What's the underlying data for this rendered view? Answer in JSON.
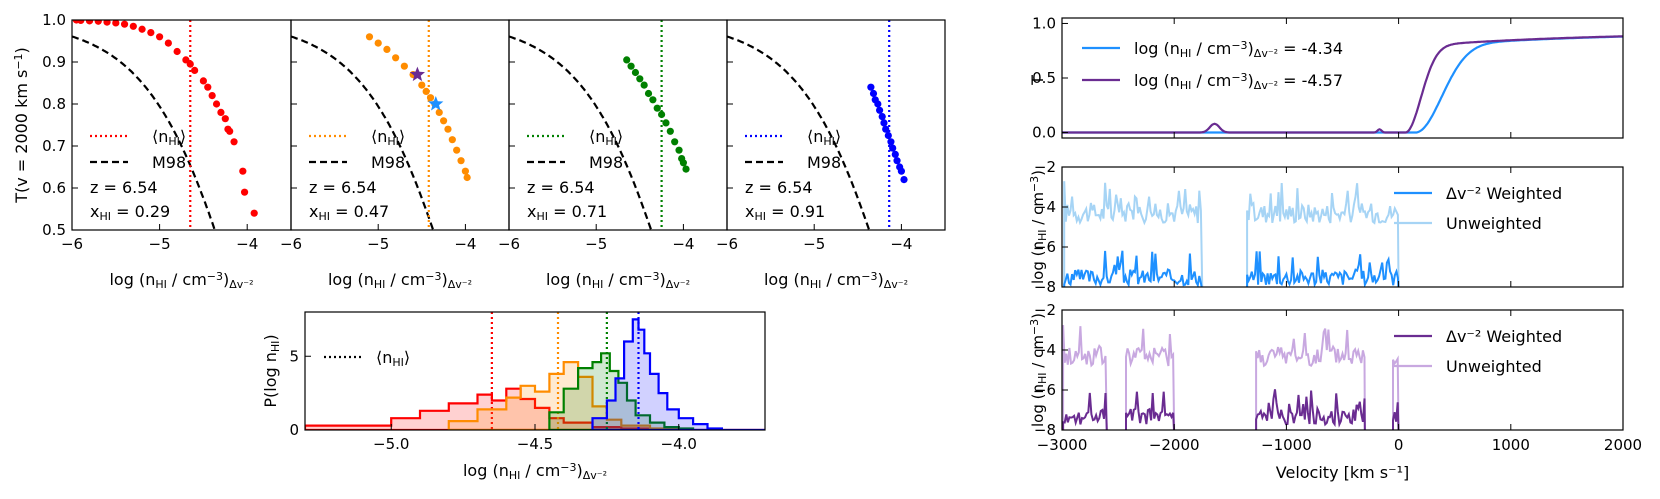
{
  "colors": {
    "red": "#ff0000",
    "orange": "#ff8c00",
    "green": "#008000",
    "blue": "#0000ff",
    "lightblue": "#1e90ff",
    "paleblue": "#a6d4f5",
    "purple": "#6a2c91",
    "lightpurple": "#c8a8e0",
    "black": "#000000"
  },
  "chart_data": [
    {
      "type": "scatter",
      "title": "",
      "ylabel": "T(v = 2000 km s⁻¹)",
      "xlabel": "log (nHI / cm⁻³)Δv⁻²",
      "xlim": [
        -6,
        -3.5
      ],
      "ylim": [
        0.5,
        1.0
      ],
      "xticks": [
        "−6",
        "−5",
        "−4"
      ],
      "yticks": [
        "0.5",
        "0.6",
        "0.7",
        "0.8",
        "0.9",
        "1.0"
      ],
      "color": "red",
      "vline": -4.65,
      "z_label": "z = 6.54",
      "x_label": "xHI = 0.29",
      "legend": [
        "⟨nHI⟩",
        "M98"
      ],
      "points": [
        [
          -5.95,
          1.0
        ],
        [
          -5.9,
          0.999
        ],
        [
          -5.8,
          0.998
        ],
        [
          -5.7,
          0.997
        ],
        [
          -5.6,
          0.995
        ],
        [
          -5.5,
          0.993
        ],
        [
          -5.4,
          0.99
        ],
        [
          -5.3,
          0.985
        ],
        [
          -5.2,
          0.978
        ],
        [
          -5.1,
          0.97
        ],
        [
          -5.0,
          0.96
        ],
        [
          -4.9,
          0.945
        ],
        [
          -4.8,
          0.925
        ],
        [
          -4.7,
          0.905
        ],
        [
          -4.65,
          0.895
        ],
        [
          -4.6,
          0.88
        ],
        [
          -4.5,
          0.855
        ],
        [
          -4.45,
          0.84
        ],
        [
          -4.4,
          0.82
        ],
        [
          -4.35,
          0.8
        ],
        [
          -4.3,
          0.78
        ],
        [
          -4.25,
          0.765
        ],
        [
          -4.22,
          0.74
        ],
        [
          -4.2,
          0.735
        ],
        [
          -4.15,
          0.71
        ],
        [
          -4.05,
          0.64
        ],
        [
          -4.03,
          0.59
        ],
        [
          -3.92,
          0.54
        ]
      ]
    },
    {
      "type": "scatter",
      "title": "",
      "xlabel": "log (nHI / cm⁻³)Δv⁻²",
      "xlim": [
        -6,
        -3.5
      ],
      "ylim": [
        0.5,
        1.0
      ],
      "xticks": [
        "−6",
        "−5",
        "−4"
      ],
      "color": "orange",
      "vline": -4.42,
      "z_label": "z = 6.54",
      "x_label": "xHI = 0.47",
      "legend": [
        "⟨nHI⟩",
        "M98"
      ],
      "stars": [
        {
          "x": -4.55,
          "y": 0.87,
          "color": "purple"
        },
        {
          "x": -4.34,
          "y": 0.8,
          "color": "lightblue"
        }
      ],
      "points": [
        [
          -5.1,
          0.96
        ],
        [
          -5.0,
          0.945
        ],
        [
          -4.9,
          0.93
        ],
        [
          -4.8,
          0.91
        ],
        [
          -4.7,
          0.89
        ],
        [
          -4.6,
          0.87
        ],
        [
          -4.5,
          0.845
        ],
        [
          -4.45,
          0.83
        ],
        [
          -4.4,
          0.815
        ],
        [
          -4.35,
          0.8
        ],
        [
          -4.3,
          0.78
        ],
        [
          -4.25,
          0.76
        ],
        [
          -4.2,
          0.74
        ],
        [
          -4.15,
          0.715
        ],
        [
          -4.1,
          0.69
        ],
        [
          -4.05,
          0.665
        ],
        [
          -4.0,
          0.64
        ],
        [
          -3.98,
          0.625
        ]
      ]
    },
    {
      "type": "scatter",
      "title": "",
      "xlabel": "log (nHI / cm⁻³)Δv⁻²",
      "xlim": [
        -6,
        -3.5
      ],
      "ylim": [
        0.5,
        1.0
      ],
      "xticks": [
        "−6",
        "−5",
        "−4"
      ],
      "color": "green",
      "vline": -4.25,
      "z_label": "z = 6.54",
      "x_label": "xHI = 0.71",
      "legend": [
        "⟨nHI⟩",
        "M98"
      ],
      "points": [
        [
          -4.65,
          0.905
        ],
        [
          -4.6,
          0.89
        ],
        [
          -4.55,
          0.875
        ],
        [
          -4.5,
          0.86
        ],
        [
          -4.45,
          0.845
        ],
        [
          -4.4,
          0.825
        ],
        [
          -4.35,
          0.81
        ],
        [
          -4.3,
          0.79
        ],
        [
          -4.25,
          0.775
        ],
        [
          -4.2,
          0.755
        ],
        [
          -4.15,
          0.735
        ],
        [
          -4.1,
          0.71
        ],
        [
          -4.05,
          0.69
        ],
        [
          -4.02,
          0.67
        ],
        [
          -4.0,
          0.66
        ],
        [
          -3.97,
          0.645
        ]
      ]
    },
    {
      "type": "scatter",
      "title": "",
      "xlabel": "log (nHI / cm⁻³)Δv⁻²",
      "xlim": [
        -6,
        -3.5
      ],
      "ylim": [
        0.5,
        1.0
      ],
      "xticks": [
        "−6",
        "−5",
        "−4"
      ],
      "color": "blue",
      "vline": -4.14,
      "z_label": "z = 6.54",
      "x_label": "xHI = 0.91",
      "legend": [
        "⟨nHI⟩",
        "M98"
      ],
      "points": [
        [
          -4.35,
          0.84
        ],
        [
          -4.32,
          0.825
        ],
        [
          -4.3,
          0.81
        ],
        [
          -4.27,
          0.8
        ],
        [
          -4.25,
          0.785
        ],
        [
          -4.22,
          0.77
        ],
        [
          -4.2,
          0.755
        ],
        [
          -4.18,
          0.74
        ],
        [
          -4.15,
          0.725
        ],
        [
          -4.12,
          0.71
        ],
        [
          -4.1,
          0.695
        ],
        [
          -4.07,
          0.68
        ],
        [
          -4.05,
          0.665
        ],
        [
          -4.02,
          0.65
        ],
        [
          -4.0,
          0.64
        ],
        [
          -3.97,
          0.62
        ]
      ]
    },
    {
      "type": "histogram",
      "title": "",
      "ylabel": "P(log nHI)",
      "xlabel": "log (nHI / cm⁻³)Δv⁻²",
      "xlim": [
        -5.3,
        -3.7
      ],
      "ylim": [
        0,
        8
      ],
      "xticks": [
        "−5.0",
        "−4.5",
        "−4.0"
      ],
      "yticks": [
        "0",
        "5"
      ],
      "legend": [
        "⟨nHI⟩"
      ],
      "series": [
        {
          "color": "red",
          "mean": -4.65,
          "edges": [
            -5.3,
            -5.0,
            -4.9,
            -4.8,
            -4.7,
            -4.65,
            -4.6,
            -4.55,
            -4.5,
            -4.45,
            -4.4,
            -4.3,
            -4.2,
            -4.1,
            -3.7
          ],
          "values": [
            0.3,
            0.8,
            1.3,
            1.8,
            2.4,
            2.0,
            2.8,
            2.1,
            1.5,
            0.8,
            0.5,
            0.2,
            0.1,
            0
          ]
        },
        {
          "color": "orange",
          "mean": -4.42,
          "edges": [
            -4.8,
            -4.7,
            -4.6,
            -4.55,
            -4.5,
            -4.45,
            -4.4,
            -4.35,
            -4.3,
            -4.25,
            -4.2,
            -4.1,
            -4.0
          ],
          "values": [
            0.6,
            1.4,
            2.2,
            3.0,
            2.6,
            3.8,
            4.6,
            3.6,
            1.6,
            0.7,
            0.3,
            0.1
          ]
        },
        {
          "color": "green",
          "mean": -4.25,
          "edges": [
            -4.45,
            -4.4,
            -4.35,
            -4.3,
            -4.27,
            -4.24,
            -4.21,
            -4.18,
            -4.15,
            -4.1,
            -4.05,
            -4.0,
            -3.95
          ],
          "values": [
            1.2,
            2.8,
            4.2,
            4.6,
            5.2,
            4.0,
            3.2,
            2.0,
            1.0,
            0.5,
            0.2,
            0.1
          ]
        },
        {
          "color": "blue",
          "mean": -4.14,
          "edges": [
            -4.3,
            -4.25,
            -4.22,
            -4.19,
            -4.16,
            -4.14,
            -4.12,
            -4.1,
            -4.07,
            -4.04,
            -4.0,
            -3.95,
            -3.9,
            -3.85,
            -3.7
          ],
          "values": [
            0.8,
            2.0,
            3.5,
            6.0,
            7.5,
            6.8,
            5.2,
            3.8,
            2.5,
            1.4,
            0.8,
            0.4,
            0.1,
            0
          ]
        }
      ]
    },
    {
      "type": "line",
      "title": "",
      "ylabel": "T",
      "xlim": [
        -3000,
        2000
      ],
      "ylim": [
        -0.05,
        1.05
      ],
      "yticks": [
        "0.0",
        "0.5",
        "1.0"
      ],
      "series": [
        {
          "name": "log (nHI / cm⁻³)Δv⁻² = -4.34",
          "color": "lightblue",
          "shift": 150,
          "scale": 250
        },
        {
          "name": "log (nHI / cm⁻³)Δv⁻² = -4.57",
          "color": "purple",
          "shift": 60,
          "scale": 150
        }
      ]
    },
    {
      "type": "line",
      "title": "",
      "ylabel": "log (nHI / cm⁻³)",
      "xlim": [
        -3000,
        2000
      ],
      "ylim": [
        -8,
        -2
      ],
      "yticks": [
        "−8",
        "−6",
        "−4",
        "−2"
      ],
      "segments": [
        [
          -2980,
          -1750
        ],
        [
          -1350,
          0
        ]
      ],
      "series": [
        {
          "name": "Δv⁻² Weighted",
          "color": "lightblue",
          "level": -7.6,
          "amp": 0.4
        },
        {
          "name": "Unweighted",
          "color": "paleblue",
          "level": -4.4,
          "amp": 0.5
        }
      ]
    },
    {
      "type": "line",
      "title": "",
      "ylabel": "log (nHI / cm⁻³)",
      "xlabel": "Velocity [km s⁻¹]",
      "xlim": [
        -3000,
        2000
      ],
      "ylim": [
        -8,
        -2
      ],
      "yticks": [
        "−8",
        "−6",
        "−4",
        "−2"
      ],
      "xticks": [
        "−3000",
        "−2000",
        "−1000",
        "0",
        "1000",
        "2000"
      ],
      "segments": [
        [
          -2990,
          -2600
        ],
        [
          -2430,
          -2000
        ],
        [
          -1270,
          -300
        ],
        [
          -50,
          0
        ]
      ],
      "series": [
        {
          "name": "Δv⁻² Weighted",
          "color": "purple",
          "level": -7.4,
          "amp": 0.4
        },
        {
          "name": "Unweighted",
          "color": "lightpurple",
          "level": -4.4,
          "amp": 0.5
        }
      ]
    }
  ]
}
